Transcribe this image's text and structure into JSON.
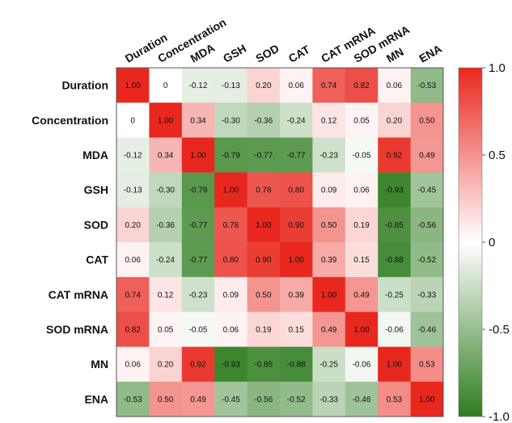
{
  "chart_data": {
    "type": "heatmap",
    "title": "",
    "rows": [
      "Duration",
      "Concentration",
      "MDA",
      "GSH",
      "SOD",
      "CAT",
      "CAT mRNA",
      "SOD mRNA",
      "MN",
      "ENA"
    ],
    "columns": [
      "Duration",
      "Concentration",
      "MDA",
      "GSH",
      "SOD",
      "CAT",
      "CAT mRNA",
      "SOD mRNA",
      "MN",
      "ENA"
    ],
    "values": [
      [
        1.0,
        0,
        -0.12,
        -0.13,
        0.2,
        0.06,
        0.74,
        0.82,
        0.06,
        -0.53
      ],
      [
        0,
        1.0,
        0.34,
        -0.3,
        -0.36,
        -0.24,
        0.12,
        0.05,
        0.2,
        0.5
      ],
      [
        -0.12,
        0.34,
        1.0,
        -0.79,
        -0.77,
        -0.77,
        -0.23,
        -0.05,
        0.92,
        0.49
      ],
      [
        -0.13,
        -0.3,
        -0.79,
        1.0,
        0.78,
        0.8,
        0.09,
        0.06,
        -0.93,
        -0.45
      ],
      [
        0.2,
        -0.36,
        -0.77,
        0.78,
        1.0,
        0.9,
        0.5,
        0.19,
        -0.85,
        -0.56
      ],
      [
        0.06,
        -0.24,
        -0.77,
        0.8,
        0.9,
        1.0,
        0.39,
        0.15,
        -0.88,
        -0.52
      ],
      [
        0.74,
        0.12,
        -0.23,
        0.09,
        0.5,
        0.39,
        1.0,
        0.49,
        -0.25,
        -0.33
      ],
      [
        0.82,
        0.05,
        -0.05,
        0.06,
        0.19,
        0.15,
        0.49,
        1.0,
        -0.06,
        -0.46
      ],
      [
        0.06,
        0.2,
        0.92,
        -0.93,
        -0.85,
        -0.88,
        -0.25,
        -0.06,
        1.0,
        0.53
      ],
      [
        -0.53,
        0.5,
        0.49,
        -0.45,
        -0.56,
        -0.52,
        -0.33,
        -0.46,
        0.53,
        1.0
      ]
    ],
    "value_labels": [
      [
        "1.00",
        "0",
        "-0.12",
        "-0.13",
        "0.20",
        "0.06",
        "0.74",
        "0.82",
        "0.06",
        "-0.53"
      ],
      [
        "0",
        "1.00",
        "0.34",
        "-0.30",
        "-0.36",
        "-0.24",
        "0.12",
        "0.05",
        "0.20",
        "0.50"
      ],
      [
        "-0.12",
        "0.34",
        "1.00",
        "-0.79",
        "-0.77",
        "-0.77",
        "-0.23",
        "-0.05",
        "0.92",
        "0.49"
      ],
      [
        "-0.13",
        "-0.30",
        "-0.79",
        "1.00",
        "0.78",
        "0.80",
        "0.09",
        "0.06",
        "-0.93",
        "-0.45"
      ],
      [
        "0.20",
        "-0.36",
        "-0.77",
        "0.78",
        "1.00",
        "0.90",
        "0.50",
        "0.19",
        "-0.85",
        "-0.56"
      ],
      [
        "0.06",
        "-0.24",
        "-0.77",
        "0.80",
        "0.90",
        "1.00",
        "0.39",
        "0.15",
        "-0.88",
        "-0.52"
      ],
      [
        "0.74",
        "0.12",
        "-0.23",
        "0.09",
        "0.50",
        "0.39",
        "1.00",
        "0.49",
        "-0.25",
        "-0.33"
      ],
      [
        "0.82",
        "0.05",
        "-0.05",
        "0.06",
        "0.19",
        "0.15",
        "0.49",
        "1.00",
        "-0.06",
        "-0.46"
      ],
      [
        "0.06",
        "0.20",
        "0.92",
        "-0.93",
        "-0.85",
        "-0.88",
        "-0.25",
        "-0.06",
        "1.00",
        "0.53"
      ],
      [
        "-0.53",
        "0.50",
        "0.49",
        "-0.45",
        "-0.56",
        "-0.52",
        "-0.33",
        "-0.46",
        "0.53",
        "1.00"
      ]
    ],
    "color_scale": {
      "min": -1.0,
      "max": 1.0,
      "negative_color": "#2e7d1e",
      "mid_color": "#ffffff",
      "positive_color": "#e8281e",
      "ticks": [
        1.0,
        0.5,
        0,
        -0.5,
        -1.0
      ],
      "tick_labels": [
        "1.0",
        "0.5",
        "0",
        "-0.5",
        "-1.0"
      ]
    },
    "legend_placement": "right",
    "grid": false
  }
}
